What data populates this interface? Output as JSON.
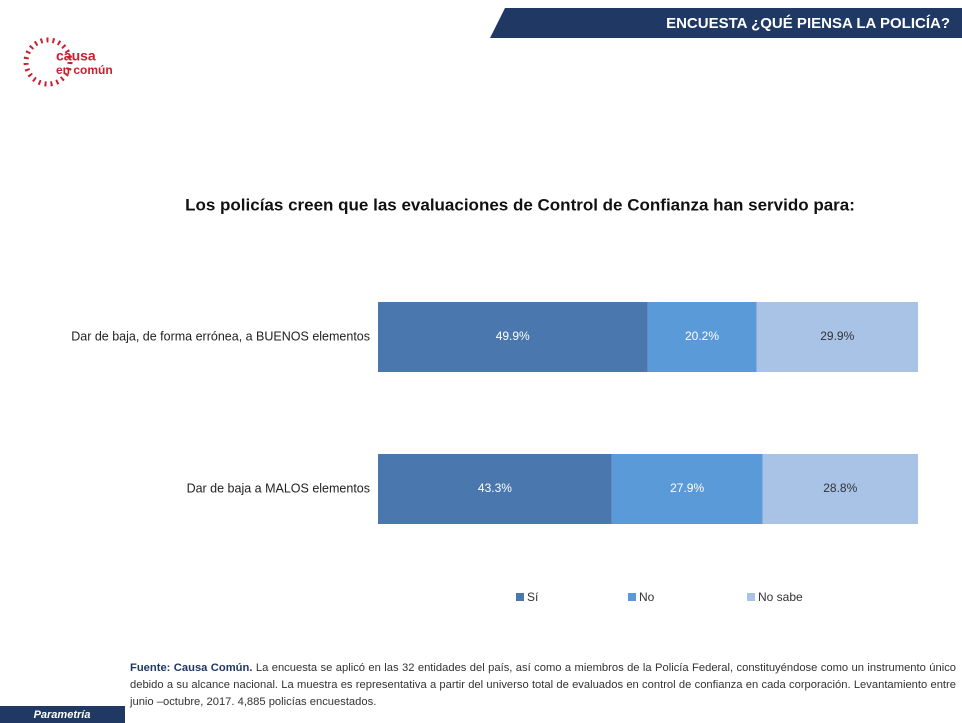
{
  "header": {
    "title": "ENCUESTA ¿QUÉ PIENSA LA POLICÍA?",
    "logo_top": "causa",
    "logo_bottom": "en común"
  },
  "chart_data": {
    "type": "bar",
    "orientation": "horizontal",
    "stacked": true,
    "title": "Los policías creen que las evaluaciones de Control de Confianza han servido para:",
    "categories": [
      "Dar de baja, de forma errónea, a BUENOS elementos",
      "Dar de baja a MALOS elementos"
    ],
    "series": [
      {
        "name": "Sí",
        "color": "#4a77ad",
        "values": [
          49.9,
          43.3
        ],
        "value_labels": [
          "49.9%",
          "43.3%"
        ]
      },
      {
        "name": "No",
        "color": "#5b9ad8",
        "values": [
          20.2,
          27.9
        ],
        "value_labels": [
          "20.2%",
          "27.9%"
        ]
      },
      {
        "name": "No sabe",
        "color": "#a8c3e6",
        "values": [
          29.9,
          28.8
        ],
        "value_labels": [
          "29.9%",
          "28.8%"
        ]
      }
    ],
    "legend": "bottom"
  },
  "footer": {
    "source_label": "Fuente: Causa Común.",
    "source_text": "La encuesta se aplicó en las 32 entidades del país, así como a miembros de la Policía Federal, constituyéndose como un instrumento único debido a su alcance nacional. La muestra es representativa a partir del universo total de evaluados en control de confianza en cada corporación. Levantamiento entre junio –octubre, 2017. 4,885 policías encuestados.",
    "badge": "Parametría"
  }
}
